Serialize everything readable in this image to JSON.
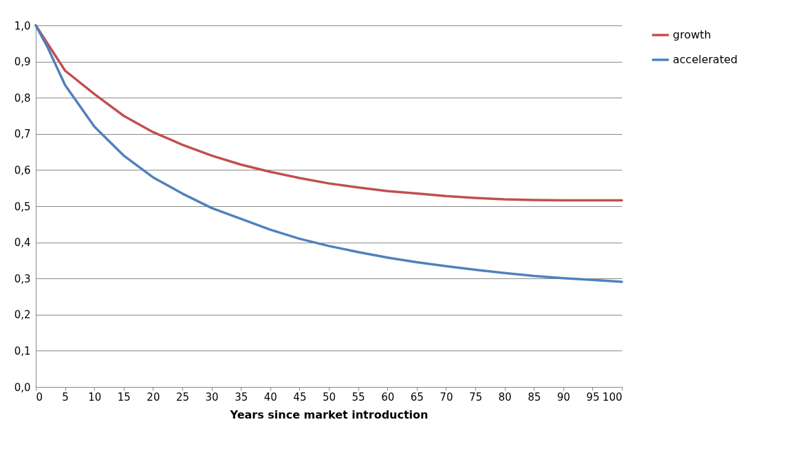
{
  "chart_data": {
    "type": "line",
    "xlabel": "Years since market introduction",
    "x": [
      0,
      2,
      5,
      10,
      15,
      20,
      25,
      30,
      35,
      40,
      45,
      50,
      55,
      60,
      65,
      70,
      75,
      80,
      85,
      90,
      95,
      100
    ],
    "series": [
      {
        "name": "growth",
        "color": "#c0504d",
        "values": [
          1.0,
          0.95,
          0.875,
          0.81,
          0.75,
          0.705,
          0.67,
          0.64,
          0.615,
          0.595,
          0.578,
          0.563,
          0.552,
          0.542,
          0.535,
          0.528,
          0.523,
          0.519,
          0.517,
          0.516,
          0.516,
          0.516
        ]
      },
      {
        "name": "accelerated",
        "color": "#4f81bd",
        "values": [
          1.0,
          0.94,
          0.835,
          0.72,
          0.64,
          0.58,
          0.535,
          0.495,
          0.465,
          0.435,
          0.41,
          0.39,
          0.373,
          0.358,
          0.345,
          0.334,
          0.324,
          0.315,
          0.307,
          0.301,
          0.296,
          0.291
        ]
      }
    ],
    "xlim": [
      0,
      100
    ],
    "xticks": [
      0,
      5,
      10,
      15,
      20,
      25,
      30,
      35,
      40,
      45,
      50,
      55,
      60,
      65,
      70,
      75,
      80,
      85,
      90,
      95,
      100
    ],
    "ylim": [
      0,
      1
    ],
    "yticks": [
      {
        "value": 0,
        "label": "0,0"
      },
      {
        "value": 0.1,
        "label": "0,1"
      },
      {
        "value": 0.2,
        "label": "0,2"
      },
      {
        "value": 0.3,
        "label": "0,3"
      },
      {
        "value": 0.4,
        "label": "0,4"
      },
      {
        "value": 0.5,
        "label": "0,5"
      },
      {
        "value": 0.6,
        "label": "0,6"
      },
      {
        "value": 0.7,
        "label": "0,7"
      },
      {
        "value": 0.8,
        "label": "0,8"
      },
      {
        "value": 0.9,
        "label": "0,9"
      },
      {
        "value": 1,
        "label": "1,0"
      }
    ],
    "grid": "y",
    "legend": "right",
    "marker": "none",
    "line_style": "solid"
  }
}
